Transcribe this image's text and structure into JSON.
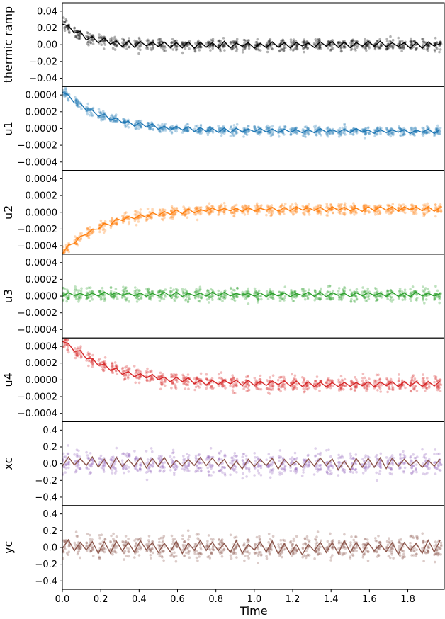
{
  "chart_data": {
    "type": "scatter",
    "xlabel": "Time",
    "xlim": [
      0,
      1.99
    ],
    "x_ticks": [
      "0.0",
      "0.2",
      "0.4",
      "0.6",
      "0.8",
      "1.0",
      "1.2",
      "1.4",
      "1.6",
      "1.8"
    ],
    "x_tick_values": [
      0,
      0.2,
      0.4,
      0.6,
      0.8,
      1.0,
      1.2,
      1.4,
      1.6,
      1.8
    ],
    "line_period": 0.0625,
    "panels": [
      {
        "ylabel": "thermic ramp",
        "ylim": [
          -0.05,
          0.05
        ],
        "y_ticks": [
          "0.04",
          "0.02",
          "0.00",
          "−0.02",
          "−0.04"
        ],
        "y_tick_values": [
          0.04,
          0.02,
          0.0,
          -0.02,
          -0.04
        ],
        "point_color": "#000000",
        "line_color": "#000000",
        "start": 0.027,
        "end": 0.0,
        "decay": 0.12,
        "wiggle": 0.003,
        "spread": 0.006
      },
      {
        "ylabel": "u1",
        "ylim": [
          -0.0005,
          0.0005
        ],
        "y_ticks": [
          "0.0004",
          "0.0002",
          "0.0000",
          "−0.0002",
          "−0.0004"
        ],
        "y_tick_values": [
          0.0004,
          0.0002,
          0.0,
          -0.0002,
          -0.0004
        ],
        "point_color": "#1f77b4",
        "line_color": "#1f77b4",
        "start": 0.00045,
        "end": -3e-05,
        "decay": 0.22,
        "wiggle": 2e-05,
        "spread": 5e-05
      },
      {
        "ylabel": "u2",
        "ylim": [
          -0.0005,
          0.0005
        ],
        "y_ticks": [
          "0.0004",
          "0.0002",
          "0.0000",
          "−0.0002",
          "−0.0004"
        ],
        "y_tick_values": [
          0.0004,
          0.0002,
          0.0,
          -0.0002,
          -0.0004
        ],
        "point_color": "#ff7f0e",
        "line_color": "#ff7f0e",
        "start": -0.00048,
        "end": 4e-05,
        "decay": 0.22,
        "wiggle": 2e-05,
        "spread": 6e-05
      },
      {
        "ylabel": "u3",
        "ylim": [
          -0.0005,
          0.0005
        ],
        "y_ticks": [
          "0.0004",
          "0.0002",
          "0.0000",
          "−0.0002",
          "−0.0004"
        ],
        "y_tick_values": [
          0.0004,
          0.0002,
          0.0,
          -0.0002,
          -0.0004
        ],
        "point_color": "#2ca02c",
        "line_color": "#2ca02c",
        "start": 2e-05,
        "end": 2e-05,
        "decay": 0.3,
        "wiggle": 2e-05,
        "spread": 7e-05
      },
      {
        "ylabel": "u4",
        "ylim": [
          -0.0005,
          0.0005
        ],
        "y_ticks": [
          "0.0004",
          "0.0002",
          "0.0000",
          "−0.0002",
          "−0.0004"
        ],
        "y_tick_values": [
          0.0004,
          0.0002,
          0.0,
          -0.0002,
          -0.0004
        ],
        "point_color": "#d62728",
        "line_color": "#d62728",
        "start": 0.00048,
        "end": -5e-05,
        "decay": 0.25,
        "wiggle": 2.5e-05,
        "spread": 8e-05
      },
      {
        "ylabel": "xc",
        "ylim": [
          -0.5,
          0.5
        ],
        "y_ticks": [
          "0.4",
          "0.2",
          "0.0",
          "−0.2",
          "−0.4"
        ],
        "y_tick_values": [
          0.4,
          0.2,
          0.0,
          -0.2,
          -0.4
        ],
        "point_color": "#9467bd",
        "line_color": "#8c564b",
        "start": 0.02,
        "end": 0.0,
        "decay": 0.5,
        "wiggle": 0.05,
        "spread": 0.12
      },
      {
        "ylabel": "yc",
        "ylim": [
          -0.5,
          0.5
        ],
        "y_ticks": [
          "0.4",
          "0.2",
          "0.0",
          "−0.2",
          "−0.4"
        ],
        "y_tick_values": [
          0.4,
          0.2,
          0.0,
          -0.2,
          -0.4
        ],
        "point_color": "#8c564b",
        "line_color": "#8c564b",
        "start": 0.02,
        "end": 0.0,
        "decay": 0.5,
        "wiggle": 0.06,
        "spread": 0.12
      }
    ]
  }
}
